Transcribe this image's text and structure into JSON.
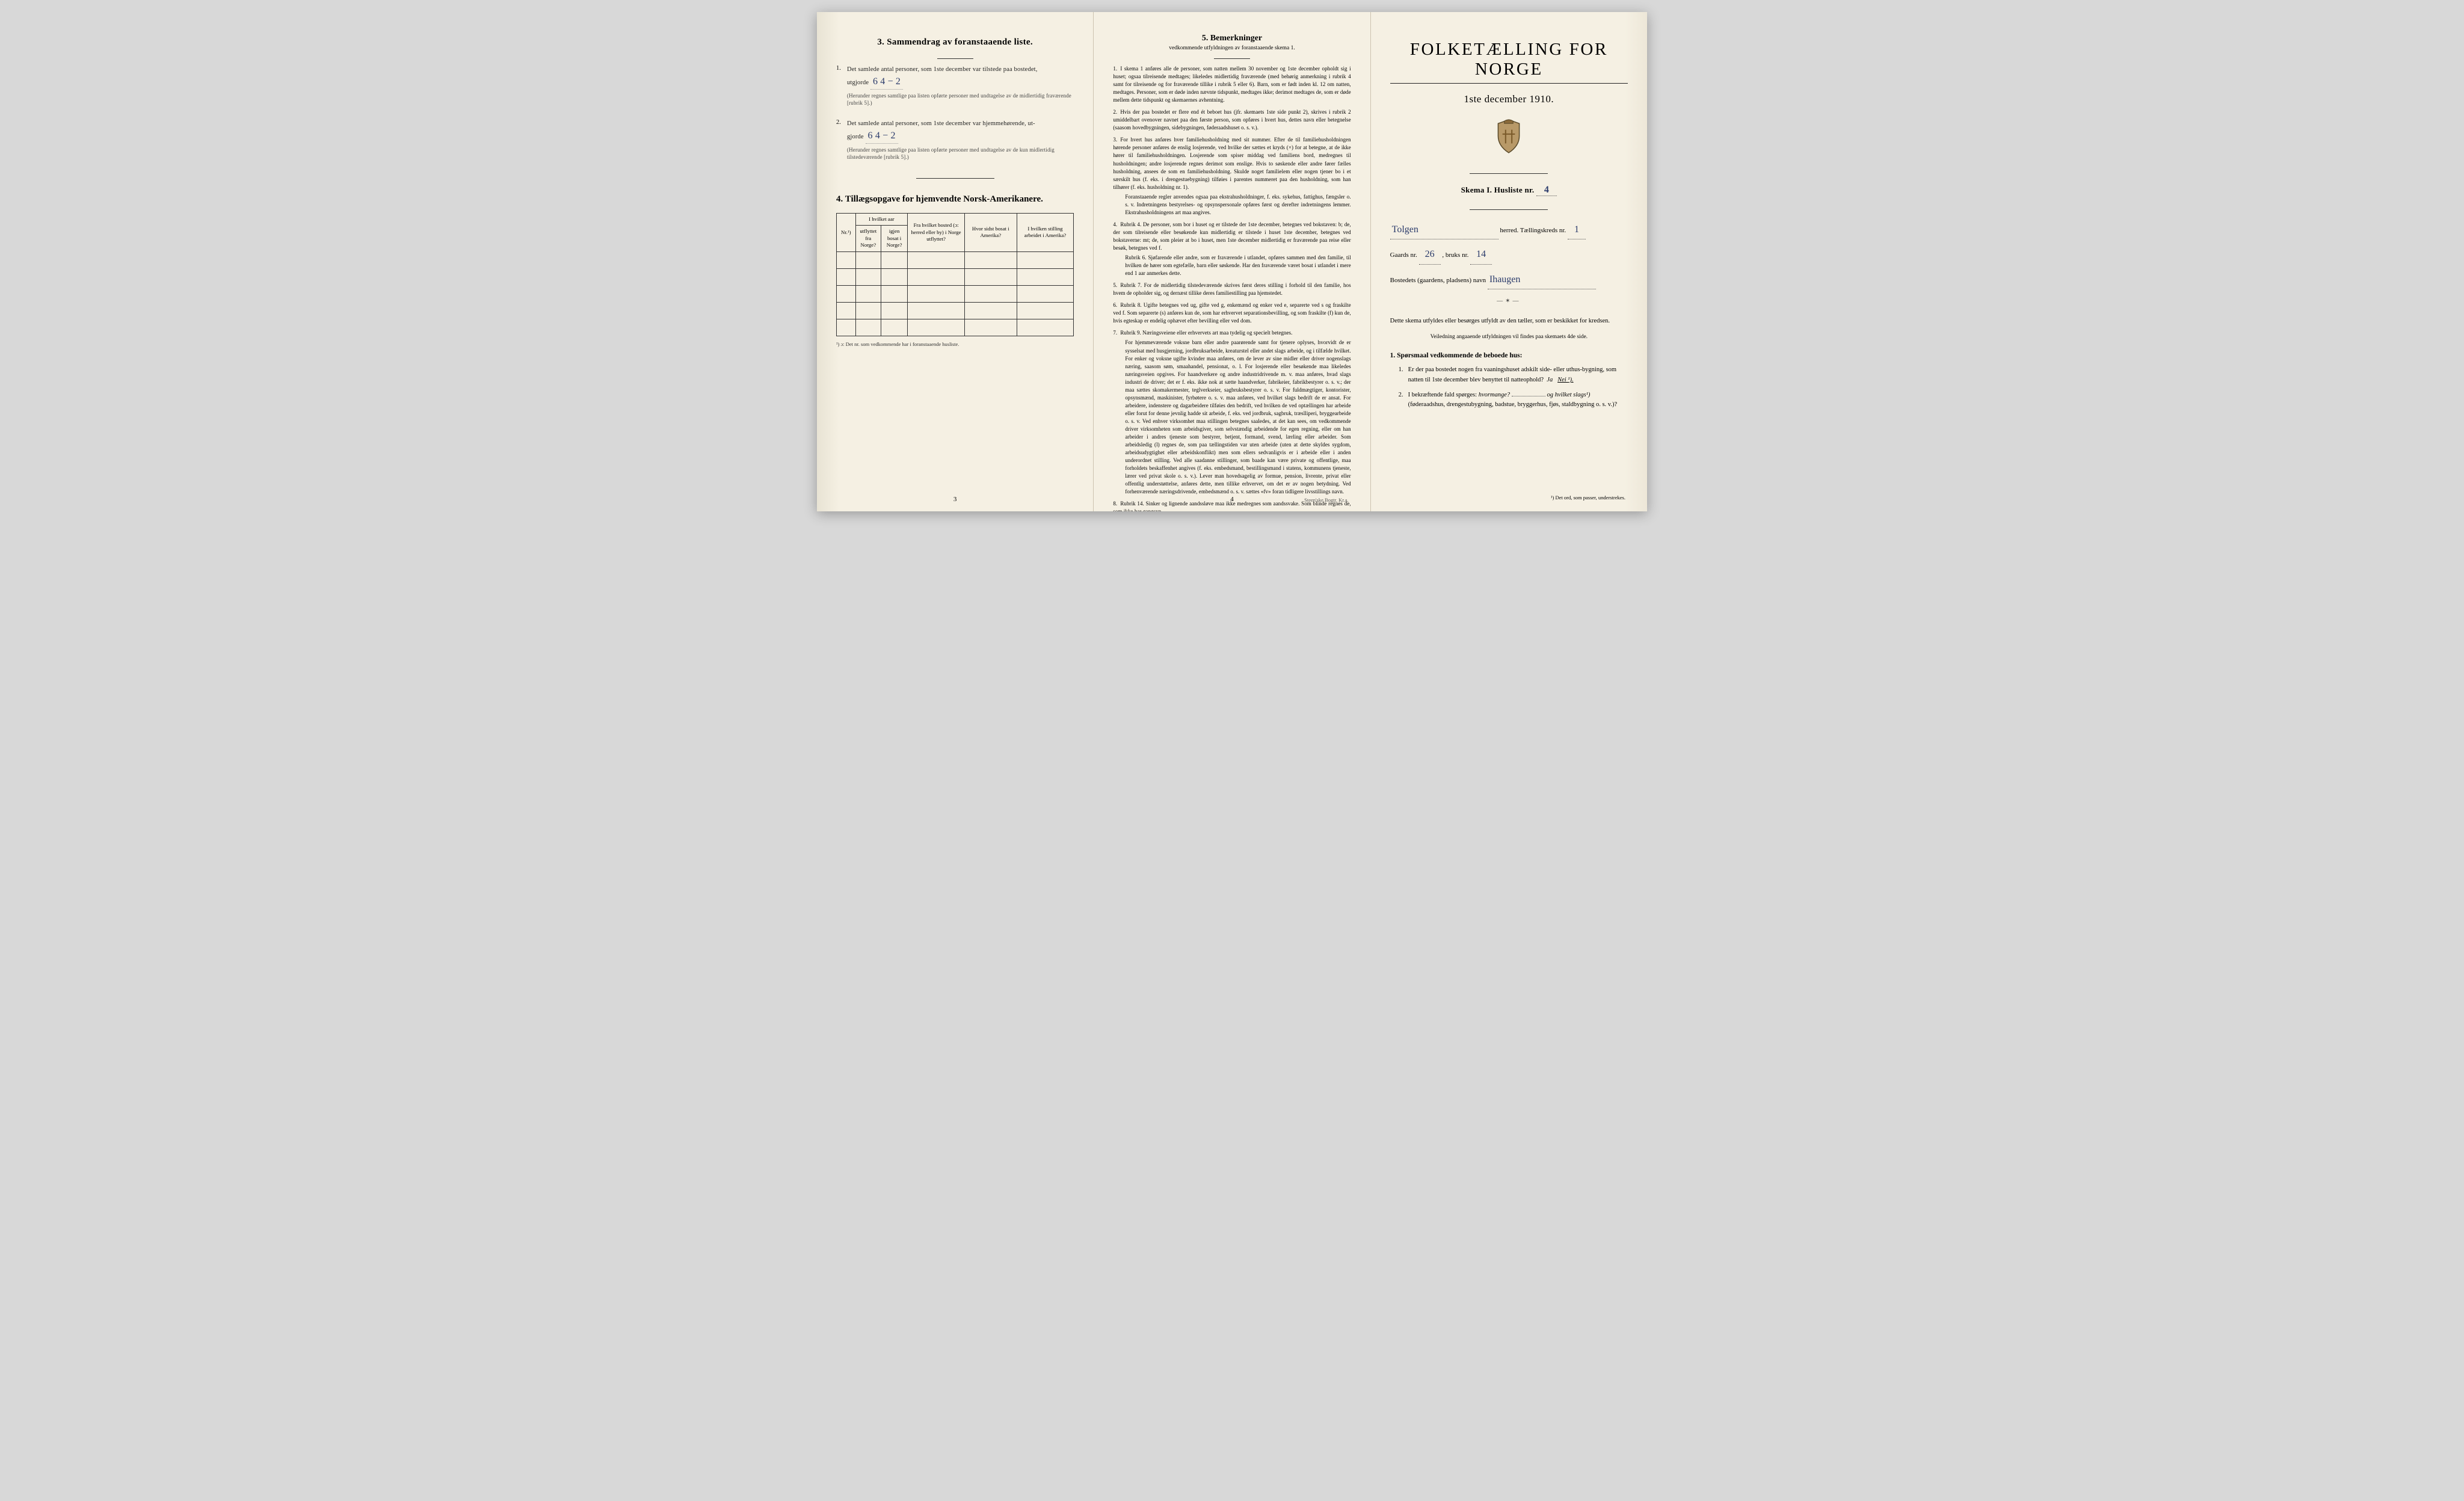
{
  "colors": {
    "paper": "#f5f0e3",
    "ink": "#222222",
    "handwriting": "#2a3a6a",
    "border": "#333333"
  },
  "page1": {
    "section3_title": "3.   Sammendrag av foranstaaende liste.",
    "item1_prefix": "1.",
    "item1_text": "Det samlede antal personer, som 1ste december var tilstede paa bostedet,",
    "item1_line2": "utgjorde",
    "item1_value": "6    4 − 2",
    "item1_note": "(Herunder regnes samtlige paa listen opførte personer med undtagelse av de midlertidig fraværende [rubrik 5].)",
    "item2_prefix": "2.",
    "item2_text": "Det samlede antal personer, som 1ste december var hjemmehørende, ut-",
    "item2_line2": "gjorde",
    "item2_value": "6    4 − 2",
    "item2_note": "(Herunder regnes samtlige paa listen opførte personer med undtagelse av de kun midlertidig tilstedeværende [rubrik 5].)",
    "section4_title": "4.  Tillægsopgave for hjemvendte Norsk-Amerikanere.",
    "table": {
      "headers": {
        "col1": "Nr.¹)",
        "col2a": "I hvilket aar",
        "col2b": "utflyttet fra Norge?",
        "col2c": "igjen bosat i Norge?",
        "col3": "Fra hvilket bosted (ɔ: herred eller by) i Norge utflyttet?",
        "col4": "Hvor sidst bosat i Amerika?",
        "col5": "I hvilken stilling arbeidet i Amerika?"
      },
      "row_count": 5
    },
    "table_footnote": "¹) ɔ: Det nr. som vedkommende har i foranstaaende husliste.",
    "page_num": "3"
  },
  "page2": {
    "title": "5.   Bemerkninger",
    "subtitle": "vedkommende utfyldningen av foranstaaende skema 1.",
    "items": [
      {
        "n": "1.",
        "text": "I skema 1 anføres alle de personer, som natten mellem 30 november og 1ste december opholdt sig i huset; ogsaa tilreisende medtages; likeledes midlertidig fraværende (med behørig anmerkning i rubrik 4 samt for tilreisende og for fraværende tillike i rubrik 5 eller 6). Barn, som er født inden kl. 12 om natten, medtages. Personer, som er døde inden nævnte tidspunkt, medtages ikke; derimot medtages de, som er døde mellem dette tidspunkt og skemaernes avhentning."
      },
      {
        "n": "2.",
        "text": "Hvis der paa bostedet er flere end ét beboet hus (jfr. skemaets 1ste side punkt 2), skrives i rubrik 2 umiddelbart ovenover navnet paa den første person, som opføres i hvert hus, dettes navn eller betegnelse (saasom hovedbygningen, sidebygningen, føderaadshuset o. s. v.)."
      },
      {
        "n": "3.",
        "text": "For hvert hus anføres hver familiehusholdning med sit nummer. Efter de til familiehusholdningen hørende personer anføres de enslig losjerende, ved hvilke der sættes et kryds (×) for at betegne, at de ikke hører til familiehusholdningen. Losjerende som spiser middag ved familiens bord, medregnes til husholdningen; andre losjerende regnes derimot som enslige. Hvis to søskende eller andre fører fælles husholdning, ansees de som en familiehusholdning. Skulde noget familielem eller nogen tjener bo i et særskilt hus (f. eks. i drengestuebygning) tilføies i parentes nummeret paa den husholdning, som han tilhører (f. eks. husholdning nr. 1).",
        "extra": "Foranstaaende regler anvendes ogsaa paa ekstrahusholdninger, f. eks. sykehus, fattighus, fængsler o. s. v. Indretningens bestyrelses- og opsynspersonale opføres først og derefter indretningens lemmer. Ekstrahusholdningens art maa angives."
      },
      {
        "n": "4.",
        "text": "Rubrik 4. De personer, som bor i huset og er tilstede der 1ste december, betegnes ved bokstaven: b; de, der som tilreisende eller besøkende kun midlertidig er tilstede i huset 1ste december, betegnes ved bokstaverne: mt; de, som pleier at bo i huset, men 1ste december midlertidig er fraværende paa reise eller besøk, betegnes ved f.",
        "extra": "Rubrik 6. Sjøfarende eller andre, som er fraværende i utlandet, opføres sammen med den familie, til hvilken de hører som egtefælle, barn eller søskende. Har den fraværende været bosat i utlandet i mere end 1 aar anmerkes dette."
      },
      {
        "n": "5.",
        "text": "Rubrik 7. For de midlertidig tilstedeværende skrives først deres stilling i forhold til den familie, hos hvem de opholder sig, og dernæst tillike deres familiestilling paa hjemstedet."
      },
      {
        "n": "6.",
        "text": "Rubrik 8. Ugifte betegnes ved ug, gifte ved g, enkemænd og enker ved e, separerte ved s og fraskilte ved f. Som separerte (s) anføres kun de, som har erhvervet separationsbevilling, og som fraskilte (f) kun de, hvis egteskap er endelig ophævet efter bevilling eller ved dom."
      },
      {
        "n": "7.",
        "text": "Rubrik 9. Næringsveiene eller erhvervets art maa tydelig og specielt betegnes.",
        "extra": "For hjemmeværende voksne barn eller andre paarørende samt for tjenere oplyses, hvorvidt de er sysselsat med husgjerning, jordbruksarbeide, kreaturstel eller andet slags arbeide, og i tilfælde hvilket. For enker og voksne ugifte kvinder maa anføres, om de lever av sine midler eller driver nogenslags næring, saasom søm, smaahandel, pensionat, o. l. For losjerende eller besøkende maa likeledes næringsveien opgives. For haandverkere og andre industridrivende m. v. maa anføres, hvad slags industri de driver; det er f. eks. ikke nok at sætte haandverker, fabrikeier, fabrikbestyrer o. s. v.; der maa sættes skomakermester, teglverkseier, sagbruksbestyrer o. s. v. For fuldmægtiger, kontorister, opsynsmænd, maskinister, fyrbøtere o. s. v. maa anføres, ved hvilket slags bedrift de er ansat. For arbeidere, indenstere og dagarbeidere tilføies den bedrift, ved hvilken de ved optællingen har arbeide eller forut for denne jevnlig hadde sit arbeide, f. eks. ved jordbruk, sagbruk, træslliperi, bryggearbeide o. s. v. Ved enhver virksomhet maa stillingen betegnes saaledes, at det kan sees, om vedkommende driver virksomheten som arbeidsgiver, som selvstændig arbeidende for egen regning, eller om han arbeider i andres tjeneste som bestyrer, betjent, formand, svend, lærling eller arbeider. Som arbeidsledig (l) regnes de, som paa tællingstiden var uten arbeide (uten at dette skyldes sygdom, arbeidsudygtighet eller arbeidskonflikt) men som ellers sedvanligvis er i arbeide eller i anden underordnet stilling. Ved alle saadanne stillinger, som baade kan være private og offentlige, maa forholdets beskaffenhet angives (f. eks. embedsmand, bestillingsmand i statens, kommunens tjeneste, lærer ved privat skole o. s. v.). Lever man hovedsagelig av formue, pension, livrente, privat eller offentlig understøttelse, anføres dette, men tillike erhvervet, om det er av nogen betydning. Ved forhenværende næringsdrivende, embedsmænd o. s. v. sættes «fv» foran tidligere livsstillings navn."
      },
      {
        "n": "8.",
        "text": "Rubrik 14. Sinker og lignende aandssløve maa ikke medregnes som aandssvake. Som blinde regnes de, som ikke har gangsyn."
      }
    ],
    "page_num": "4",
    "printer": "Steen'ske Bogtr.  Kr.a."
  },
  "page3": {
    "title": "FOLKETÆLLING FOR NORGE",
    "date": "1ste december 1910.",
    "skema_label": "Skema I.  Husliste nr.",
    "skema_value": "4",
    "field1_value": "Tolgen",
    "field1_label": "herred.   Tællingskreds nr.",
    "field1b_value": "1",
    "field2_label": "Gaards nr.",
    "field2_value": "26",
    "field2b_label": ", bruks nr.",
    "field2b_value": "14",
    "field3_label": "Bostedets (gaardens, pladsens) navn",
    "field3_value": "Ihaugen",
    "instruction1": "Dette skema utfyldes eller besørges utfyldt av den tæller, som er beskikket for kredsen.",
    "instruction2": "Veiledning angaaende utfyldningen vil findes paa skemaets 4de side.",
    "q_heading": "1. Spørsmaal vedkommende de beboede hus:",
    "q1_n": "1.",
    "q1_text": "Er der paa bostedet nogen fra vaaningshuset adskilt side- eller uthus-bygning, som natten til 1ste december blev benyttet til natteophold?",
    "q1_ja": "Ja",
    "q1_nei": "Nei ¹).",
    "q2_n": "2.",
    "q2_text_a": "I bekræftende fald spørges:",
    "q2_text_b": "hvormange?",
    "q2_text_c": "og hvilket slags¹)",
    "q2_text_d": "(føderaadshus, drengestubygning, badstue, bryggerhus, fjøs, staldbygning o. s. v.)?",
    "footnote": "¹) Det ord, som passer, understrekes."
  }
}
